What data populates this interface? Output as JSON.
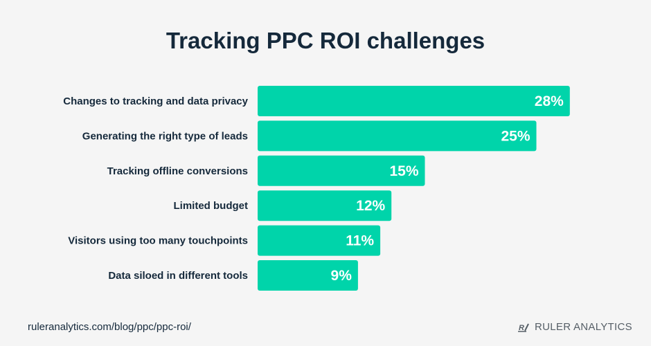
{
  "chart_data": {
    "type": "bar",
    "orientation": "horizontal",
    "title": "Tracking PPC ROI challenges",
    "categories": [
      "Changes to tracking and data privacy",
      "Generating the right type of leads",
      "Tracking offline conversions",
      "Limited budget",
      "Visitors using too many touchpoints",
      "Data siloed in different tools"
    ],
    "values": [
      28,
      25,
      15,
      12,
      11,
      9
    ],
    "value_labels": [
      "28%",
      "25%",
      "15%",
      "12%",
      "11%",
      "9%"
    ],
    "xlabel": "",
    "ylabel": "",
    "grid": false,
    "bar_color": "#00d4aa"
  },
  "footer": {
    "source": "ruleranalytics.com/blog/ppc/ppc-roi/",
    "brand": "RULER ANALYTICS"
  }
}
